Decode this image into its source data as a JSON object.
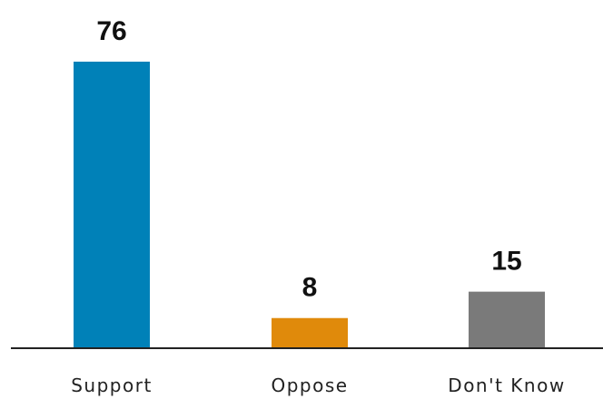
{
  "chart_data": {
    "type": "bar",
    "categories": [
      "Support",
      "Oppose",
      "Don't Know"
    ],
    "values": [
      76,
      8,
      15
    ],
    "colors": [
      "#0081b8",
      "#e08a0b",
      "#7a7a7a"
    ],
    "title": "",
    "xlabel": "",
    "ylabel": "",
    "ylim": [
      0,
      76
    ],
    "grid": false,
    "legend": "none",
    "data_labels": [
      "76",
      "8",
      "15"
    ]
  }
}
